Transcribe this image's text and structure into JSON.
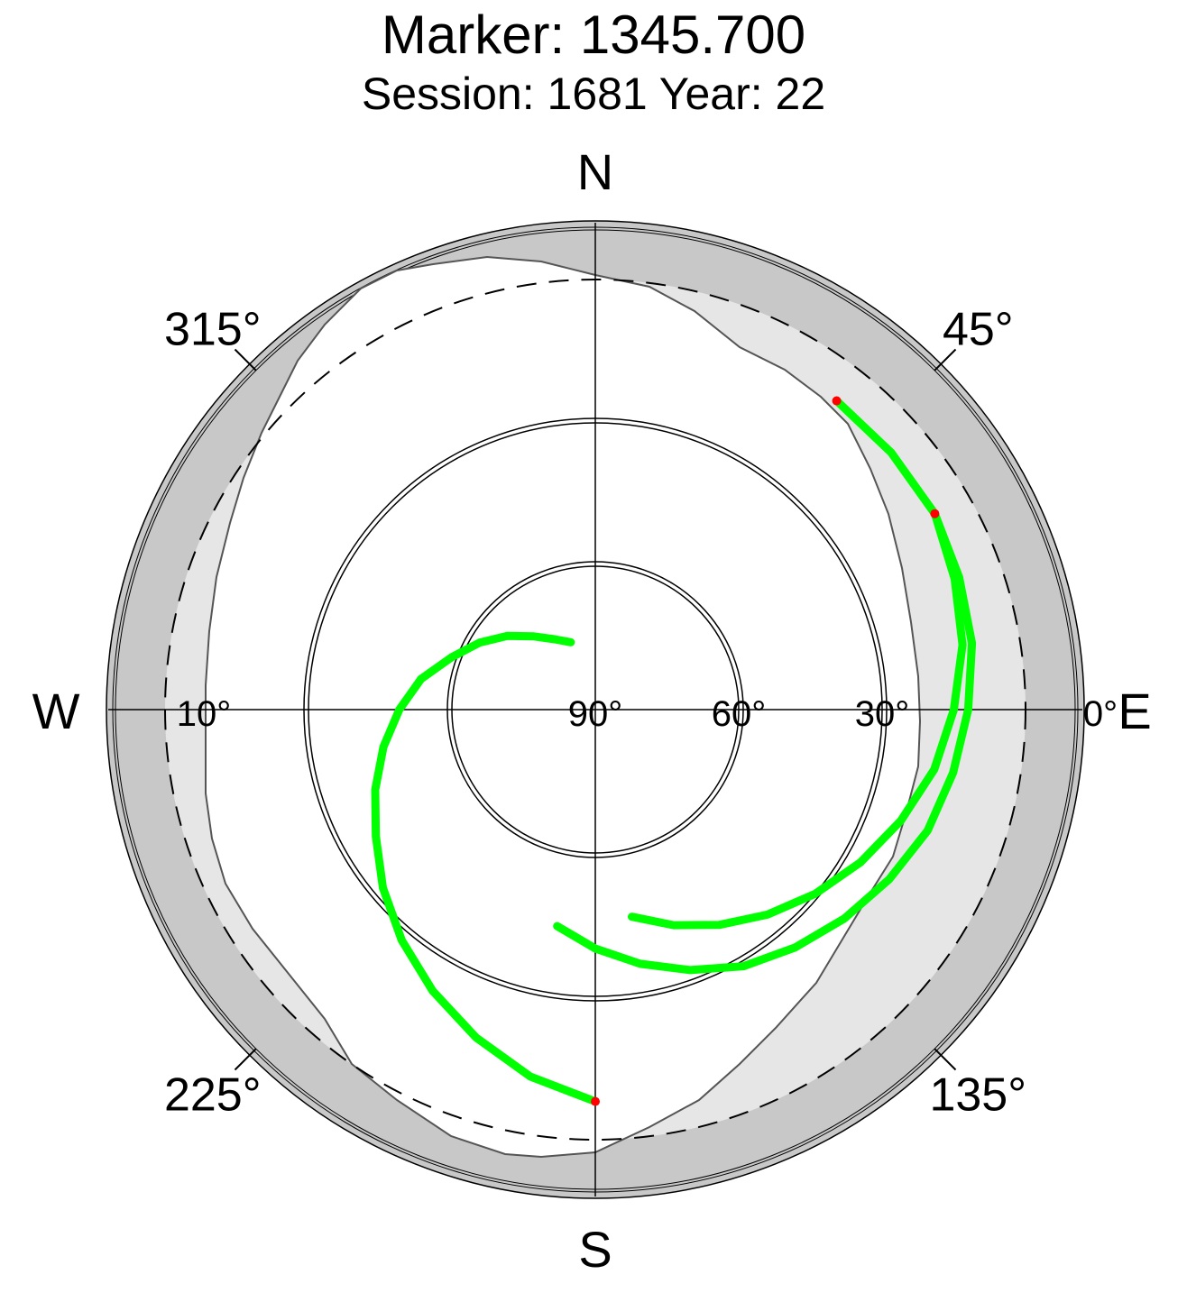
{
  "title": "Marker: 1345.700",
  "subtitle": "Session: 1681 Year: 22",
  "colors": {
    "outer_ring": "#c8c8c8",
    "mask": "#e6e6e6",
    "track": "#00ff00",
    "endpoint": "#ff0000",
    "grid": "#000000"
  },
  "chart_data": {
    "type": "scatter",
    "projection": "polar-sky (azimuth clockwise from north, elevation 90 at center, 0 at rim)",
    "compass_labels": {
      "north": "N",
      "east": "E",
      "south": "S",
      "west": "W"
    },
    "azimuth_labels": [
      {
        "azimuth": 45,
        "text": "45°"
      },
      {
        "azimuth": 135,
        "text": "135°"
      },
      {
        "azimuth": 225,
        "text": "225°"
      },
      {
        "azimuth": 315,
        "text": "315°"
      }
    ],
    "elevation_labels": [
      {
        "elevation": 90,
        "text": "90°"
      },
      {
        "elevation": 60,
        "text": "60°"
      },
      {
        "elevation": 30,
        "text": "30°"
      },
      {
        "elevation": 0,
        "text": "0°"
      },
      {
        "elevation": 10,
        "text": "10°",
        "side": "west"
      }
    ],
    "elevation_circles": [
      60,
      30,
      0
    ],
    "dashed_circle_elevation": 10,
    "series": [
      {
        "values": [
          [
            8,
            38
          ],
          [
            8,
            49
          ],
          [
            8,
            60
          ],
          [
            9,
            70
          ],
          [
            10,
            80
          ],
          [
            12,
            90
          ],
          [
            14,
            100
          ],
          [
            16,
            110
          ],
          [
            19,
            120
          ],
          [
            22,
            130
          ],
          [
            25,
            140
          ],
          [
            28,
            150
          ],
          [
            32,
            160
          ],
          [
            36,
            170
          ],
          [
            40,
            180
          ],
          [
            44,
            190
          ]
        ]
      },
      {
        "values": [
          [
            8,
            60
          ],
          [
            10,
            70
          ],
          [
            12,
            80
          ],
          [
            15,
            90
          ],
          [
            18,
            100
          ],
          [
            22,
            110
          ],
          [
            26,
            120
          ],
          [
            30,
            130
          ],
          [
            34,
            140
          ],
          [
            38,
            150
          ],
          [
            42,
            160
          ],
          [
            46,
            170
          ]
        ]
      },
      {
        "values": [
          [
            8,
            180
          ],
          [
            12,
            190
          ],
          [
            17,
            200
          ],
          [
            22,
            210
          ],
          [
            27,
            220
          ],
          [
            32,
            230
          ],
          [
            37,
            240
          ],
          [
            41,
            250
          ],
          [
            45,
            260
          ],
          [
            49,
            270
          ],
          [
            53,
            280
          ],
          [
            58,
            290
          ],
          [
            62,
            300
          ],
          [
            66,
            310
          ],
          [
            70,
            320
          ],
          [
            73,
            330
          ],
          [
            75,
            340
          ]
        ]
      }
    ]
  }
}
